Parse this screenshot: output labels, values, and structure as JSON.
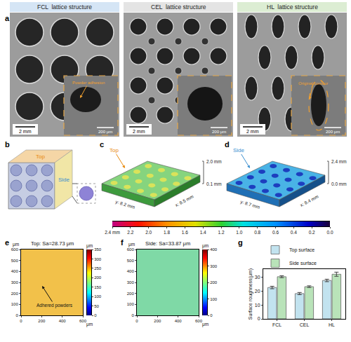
{
  "panel_labels": [
    "a",
    "b",
    "c",
    "d",
    "e",
    "f",
    "g"
  ],
  "sem": {
    "panels": [
      {
        "title": "FCL  lattice structure",
        "scale_bar": "2 mm",
        "inset_scale_bar": "200 μm",
        "annotation": "Powder adhesion"
      },
      {
        "title": "CEL  lattice structure",
        "scale_bar": "2 mm",
        "inset_scale_bar": "200 μm"
      },
      {
        "title": "HL  lattice structure",
        "scale_bar": "2 mm",
        "inset_scale_bar": "200 μm",
        "annotation": "Original contour"
      }
    ]
  },
  "model": {
    "labels": [
      "Top",
      "Side"
    ]
  },
  "topography_3d": [
    {
      "label": "Top",
      "y_size": "y: 8.2 mm",
      "x_size": "x: 8.5 mm",
      "z_top": "2.0 mm",
      "z_bottom": "0.1 mm"
    },
    {
      "label": "Side",
      "y_size": "y: 8.7 mm",
      "x_size": "x: 8.4 mm",
      "z_top": "2.4 mm",
      "z_bottom": "0.0 mm"
    }
  ],
  "colorbar_3d": {
    "xlim": [
      2.4,
      0
    ],
    "xticks": [
      {
        "value": 2.4,
        "label": "2.4 mm"
      },
      2.2,
      {
        "value": 2,
        "label": "2.0"
      },
      1.8,
      1.6,
      1.4,
      1.2,
      {
        "value": 1,
        "label": "1.0"
      },
      0.8,
      0.6,
      0.4,
      0.2,
      {
        "value": 0,
        "label": "0.0"
      }
    ]
  },
  "chart_data": [
    {
      "type": "heatmap",
      "title": "Top: Sa=28.73 μm",
      "annotation": "Adhered powders",
      "x_unit": "μm",
      "y_unit": "μm",
      "xlim": [
        0,
        600
      ],
      "xticks": [
        0,
        200,
        400,
        600
      ],
      "ylim": [
        0,
        600
      ],
      "yticks": [
        0,
        100,
        200,
        300,
        400,
        500,
        600
      ],
      "colorbar": {
        "title": "μm",
        "range": [
          0,
          350
        ],
        "ticks": [
          0,
          50,
          100,
          150,
          200,
          250,
          300,
          350
        ]
      }
    },
    {
      "type": "heatmap",
      "title": "Side: Sa=33.87 μm",
      "x_unit": "μm",
      "y_unit": "μm",
      "xlim": [
        0,
        600
      ],
      "xticks": [
        0,
        200,
        400,
        600
      ],
      "ylim": [
        0,
        600
      ],
      "yticks": [
        0,
        100,
        200,
        300,
        400,
        500,
        600
      ],
      "colorbar": {
        "title": "μm",
        "range": [
          0,
          400
        ],
        "ticks": [
          0,
          100,
          200,
          300,
          400
        ]
      }
    },
    {
      "type": "bar",
      "y_label": "Surface roughness(μm)",
      "categories": [
        "FCL",
        "CEL",
        "HL"
      ],
      "series": [
        {
          "name": "Top surface",
          "color": "#c2e3ef",
          "values": [
            22.7,
            18.3,
            27.8
          ],
          "errors": [
            0.9,
            0.8,
            0.9
          ]
        },
        {
          "name": "Side surface",
          "color": "#b9e3b9",
          "values": [
            30.5,
            23.3,
            32.3
          ],
          "errors": [
            0.7,
            0.6,
            1.5
          ]
        }
      ],
      "ylim": [
        0,
        36
      ],
      "yticks": [
        0,
        10,
        20,
        30
      ],
      "legend": "upper left"
    }
  ]
}
